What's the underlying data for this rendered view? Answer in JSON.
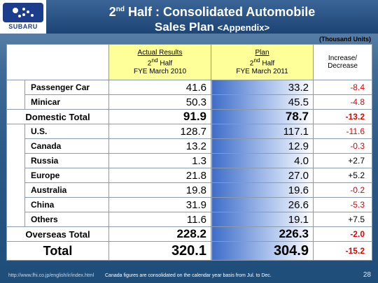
{
  "header": {
    "logo_text": "SUBARU",
    "title_pre": "2",
    "title_sup": "nd",
    "title_post": " Half : Consolidated Automobile",
    "title_line2": "Sales Plan ",
    "title_line2_suffix": "<Appendix>"
  },
  "units": "(Thousand Units)",
  "columns": {
    "actual_title": "Actual Results",
    "actual_line2_pre": "2",
    "actual_line2_sup": "nd",
    "actual_line2_post": " Half",
    "actual_line3": "FYE March 2010",
    "plan_title": "Plan",
    "plan_line2_pre": "2",
    "plan_line2_sup": "nd",
    "plan_line2_post": " Half",
    "plan_line3": "FYE March 2011",
    "inc_line1": "Increase/",
    "inc_line2": "Decrease"
  },
  "rows": {
    "passenger": {
      "label": "Passenger Car",
      "actual": "41.6",
      "plan": "33.2",
      "inc": "-8.4"
    },
    "minicar": {
      "label": "Minicar",
      "actual": "50.3",
      "plan": "45.5",
      "inc": "-4.8"
    },
    "domestic": {
      "label": "Domestic Total",
      "actual": "91.9",
      "plan": "78.7",
      "inc": "-13.2"
    },
    "us": {
      "label": "U.S.",
      "actual": "128.7",
      "plan": "117.1",
      "inc": "-11.6"
    },
    "canada": {
      "label": "Canada",
      "actual": "13.2",
      "plan": "12.9",
      "inc": "-0.3"
    },
    "russia": {
      "label": "Russia",
      "actual": "1.3",
      "plan": "4.0",
      "inc": "+2.7"
    },
    "europe": {
      "label": "Europe",
      "actual": "21.8",
      "plan": "27.0",
      "inc": "+5.2"
    },
    "australia": {
      "label": "Australia",
      "actual": "19.8",
      "plan": "19.6",
      "inc": "-0.2"
    },
    "china": {
      "label": "China",
      "actual": "31.9",
      "plan": "26.6",
      "inc": "-5.3"
    },
    "others": {
      "label": "Others",
      "actual": "11.6",
      "plan": "19.1",
      "inc": "+7.5"
    },
    "overseas": {
      "label": "Overseas Total",
      "actual": "228.2",
      "plan": "226.3",
      "inc": "-2.0"
    },
    "total": {
      "label": "Total",
      "actual": "320.1",
      "plan": "304.9",
      "inc": "-15.2"
    }
  },
  "footer": {
    "url": "http://www.fhi.co.jp/english/ir/index.html",
    "note": "Canada figures are consolidated on the calendar year basis from Jul. to Dec.",
    "page": "28"
  },
  "colors": {
    "title_bg": "#1c4475",
    "highlight_header": "#ffff99",
    "negative": "#e60000"
  }
}
